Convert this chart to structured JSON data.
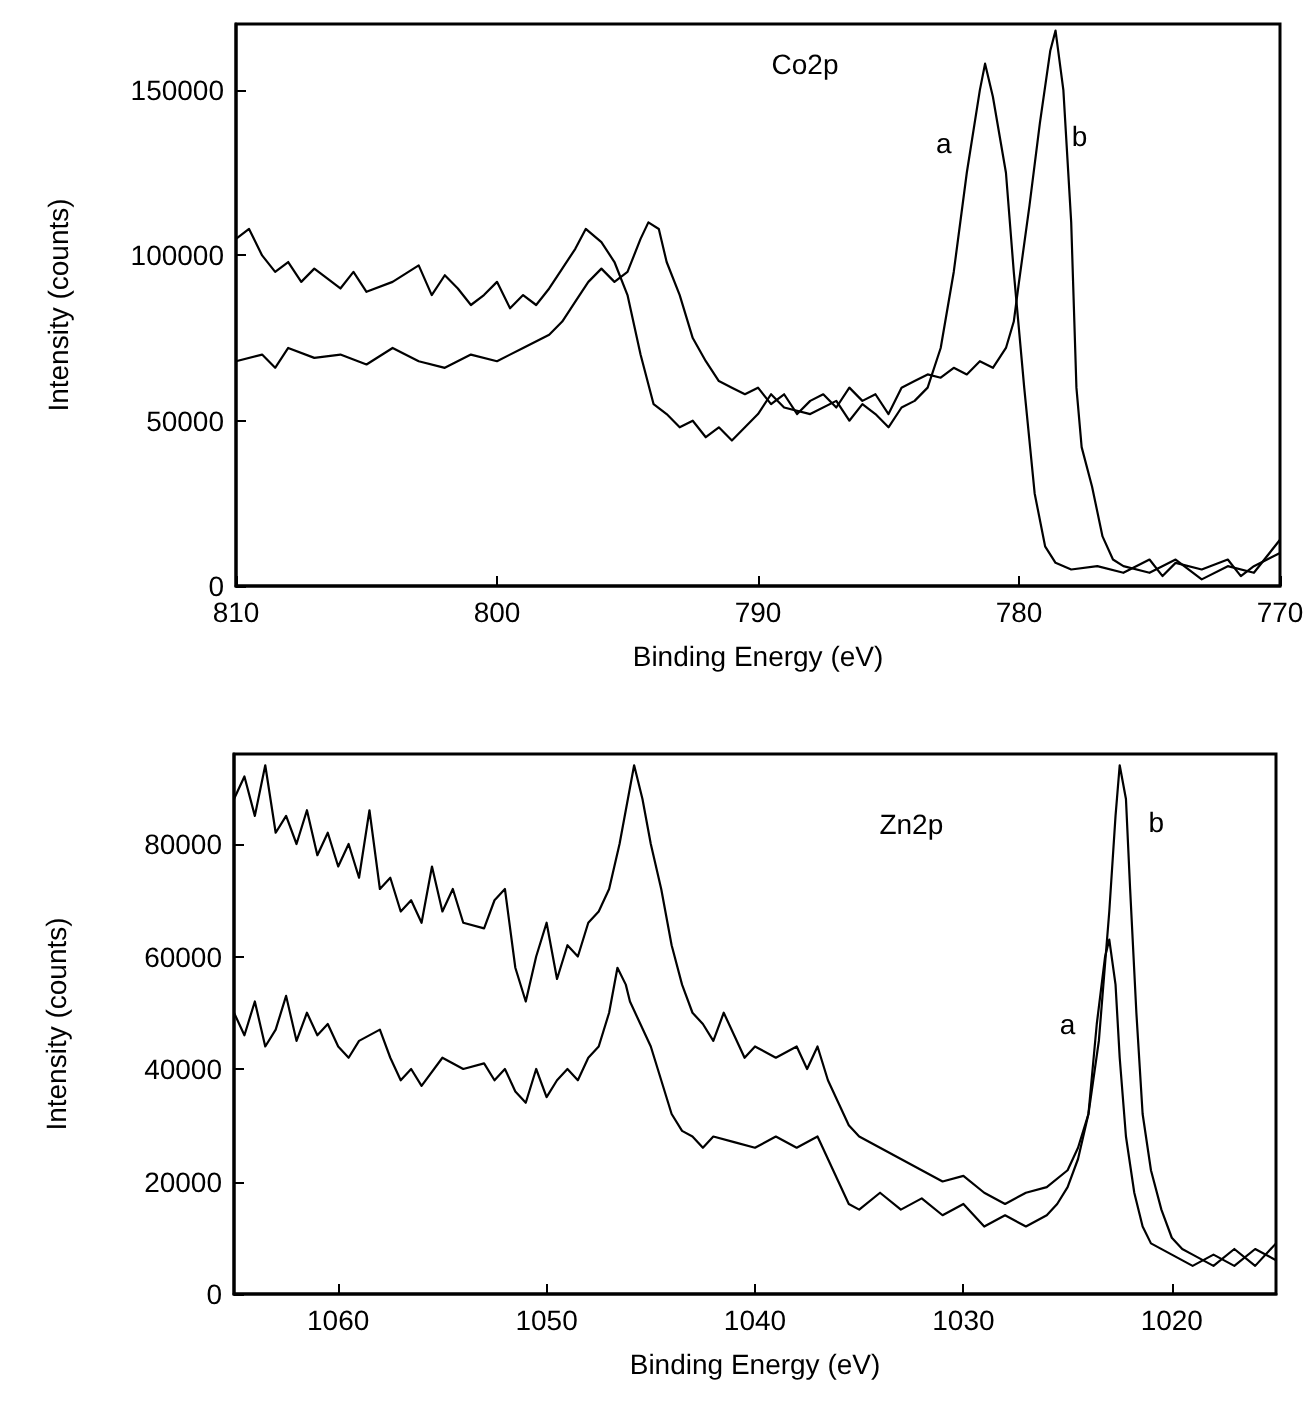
{
  "chart_data": [
    {
      "type": "line",
      "xlabel": "Binding Energy (eV)",
      "ylabel": "Intensity (counts)",
      "xlim": [
        810,
        770
      ],
      "xticks": [
        810,
        800,
        790,
        780,
        770
      ],
      "ylim": [
        0,
        170000
      ],
      "yticks": [
        0,
        50000,
        100000,
        150000
      ],
      "marker": "none",
      "line_style": "solid",
      "annotations": [
        "Co2p",
        "a",
        "b"
      ],
      "series": [
        {
          "color": "#000000",
          "x": [
            810,
            809.5,
            809,
            808.5,
            808,
            807.5,
            807,
            806,
            805.5,
            805,
            804,
            803,
            802.5,
            802,
            801.5,
            801,
            800.5,
            800,
            799.5,
            799,
            798.5,
            798,
            797.5,
            797,
            796.6,
            796,
            795.5,
            795,
            794.5,
            794,
            793.5,
            793,
            792.5,
            792,
            791.5,
            791,
            790.5,
            790,
            789.5,
            789,
            788,
            787,
            786.5,
            786,
            785.5,
            785,
            784.5,
            784,
            783.5,
            783,
            782.5,
            782,
            781.5,
            781.3,
            781,
            780.5,
            780.2,
            779.8,
            779.4,
            779,
            778.6,
            778,
            777,
            776,
            775,
            774.5,
            774,
            773,
            772,
            771.5,
            771,
            770
          ],
          "values": [
            105000,
            108000,
            100000,
            95000,
            98000,
            92000,
            96000,
            90000,
            95000,
            89000,
            92000,
            97000,
            88000,
            94000,
            90000,
            85000,
            88000,
            92000,
            84000,
            88000,
            85000,
            90000,
            96000,
            102000,
            108000,
            104000,
            98000,
            88000,
            70000,
            55000,
            52000,
            48000,
            50000,
            45000,
            48000,
            44000,
            48000,
            52000,
            58000,
            54000,
            52000,
            56000,
            50000,
            55000,
            52000,
            48000,
            54000,
            56000,
            60000,
            72000,
            95000,
            125000,
            150000,
            158000,
            148000,
            125000,
            95000,
            60000,
            28000,
            12000,
            7000,
            5000,
            6000,
            4000,
            8000,
            3000,
            7000,
            5000,
            8000,
            3000,
            6000,
            10000
          ]
        },
        {
          "color": "#000000",
          "x": [
            810,
            809,
            808.5,
            808,
            807,
            806,
            805,
            804,
            803,
            802,
            801,
            800,
            799,
            798,
            797.5,
            797,
            796.5,
            796,
            795.5,
            795,
            794.5,
            794.2,
            793.8,
            793.5,
            793,
            792.5,
            792,
            791.5,
            791,
            790.5,
            790,
            789.5,
            789,
            788.5,
            788,
            787.5,
            787,
            786.5,
            786,
            785.5,
            785,
            784.5,
            784,
            783.5,
            783,
            782.5,
            782,
            781.5,
            781,
            780.5,
            780.2,
            780,
            779.6,
            779.2,
            778.8,
            778.6,
            778.3,
            778,
            777.8,
            777.6,
            777.2,
            776.8,
            776.4,
            776,
            775,
            774,
            773,
            772,
            771,
            770
          ],
          "values": [
            68000,
            70000,
            66000,
            72000,
            69000,
            70000,
            67000,
            72000,
            68000,
            66000,
            70000,
            68000,
            72000,
            76000,
            80000,
            86000,
            92000,
            96000,
            92000,
            95000,
            105000,
            110000,
            108000,
            98000,
            88000,
            75000,
            68000,
            62000,
            60000,
            58000,
            60000,
            55000,
            58000,
            52000,
            56000,
            58000,
            54000,
            60000,
            56000,
            58000,
            52000,
            60000,
            62000,
            64000,
            63000,
            66000,
            64000,
            68000,
            66000,
            72000,
            80000,
            92000,
            115000,
            140000,
            162000,
            168000,
            150000,
            110000,
            60000,
            42000,
            30000,
            15000,
            8000,
            6000,
            4000,
            8000,
            2000,
            6000,
            4000,
            14000
          ]
        }
      ]
    },
    {
      "type": "line",
      "xlabel": "Binding Energy (eV)",
      "ylabel": "Intensity (counts)",
      "xlim": [
        1065,
        1015
      ],
      "xticks": [
        1060,
        1050,
        1040,
        1030,
        1020
      ],
      "ylim": [
        0,
        96000
      ],
      "yticks": [
        0,
        20000,
        40000,
        60000,
        80000
      ],
      "marker": "none",
      "line_style": "solid",
      "annotations": [
        "Zn2p",
        "a",
        "b"
      ],
      "series": [
        {
          "color": "#000000",
          "x": [
            1065,
            1064.5,
            1064,
            1063.5,
            1063,
            1062.5,
            1062,
            1061.5,
            1061,
            1060.5,
            1060,
            1059.5,
            1059,
            1058,
            1057.5,
            1057,
            1056.5,
            1056,
            1055,
            1054,
            1053,
            1052.5,
            1052,
            1051.5,
            1051,
            1050.5,
            1050,
            1049.5,
            1049,
            1048.5,
            1048,
            1047.5,
            1047,
            1046.6,
            1046.2,
            1046,
            1045.5,
            1045,
            1044.5,
            1044,
            1043.5,
            1043,
            1042.5,
            1042,
            1041,
            1040,
            1039,
            1038,
            1037,
            1036.5,
            1036,
            1035.5,
            1035,
            1034,
            1033,
            1032,
            1031,
            1030,
            1029,
            1028,
            1027,
            1026,
            1025.5,
            1025,
            1024.5,
            1024,
            1023.6,
            1023.2,
            1023,
            1022.7,
            1022.5,
            1022.2,
            1021.8,
            1021.4,
            1021,
            1020,
            1019,
            1018,
            1017,
            1016,
            1015
          ],
          "values": [
            50000,
            46000,
            52000,
            44000,
            47000,
            53000,
            45000,
            50000,
            46000,
            48000,
            44000,
            42000,
            45000,
            47000,
            42000,
            38000,
            40000,
            37000,
            42000,
            40000,
            41000,
            38000,
            40000,
            36000,
            34000,
            40000,
            35000,
            38000,
            40000,
            38000,
            42000,
            44000,
            50000,
            58000,
            55000,
            52000,
            48000,
            44000,
            38000,
            32000,
            29000,
            28000,
            26000,
            28000,
            27000,
            26000,
            28000,
            26000,
            28000,
            24000,
            20000,
            16000,
            15000,
            18000,
            15000,
            17000,
            14000,
            16000,
            12000,
            14000,
            12000,
            14000,
            16000,
            19000,
            24000,
            32000,
            48000,
            60000,
            63000,
            55000,
            42000,
            28000,
            18000,
            12000,
            9000,
            7000,
            5000,
            7000,
            5000,
            8000,
            6000
          ]
        },
        {
          "color": "#000000",
          "x": [
            1065,
            1064.5,
            1064,
            1063.5,
            1063,
            1062.5,
            1062,
            1061.5,
            1061,
            1060.5,
            1060,
            1059.5,
            1059,
            1058.5,
            1058,
            1057.5,
            1057,
            1056.5,
            1056,
            1055.5,
            1055,
            1054.5,
            1054,
            1053,
            1052.5,
            1052,
            1051.5,
            1051,
            1050.5,
            1050,
            1049.5,
            1049,
            1048.5,
            1048,
            1047.5,
            1047,
            1046.5,
            1046,
            1045.8,
            1045.4,
            1045,
            1044.5,
            1044,
            1043.5,
            1043,
            1042.5,
            1042,
            1041.5,
            1041,
            1040.5,
            1040,
            1039,
            1038,
            1037.5,
            1037,
            1036.5,
            1036,
            1035.5,
            1035,
            1034,
            1033,
            1032,
            1031,
            1030,
            1029,
            1028,
            1027,
            1026,
            1025,
            1024.5,
            1024,
            1023.5,
            1023,
            1022.7,
            1022.5,
            1022.2,
            1022,
            1021.7,
            1021.4,
            1021,
            1020.5,
            1020,
            1019.5,
            1019,
            1018,
            1017,
            1016,
            1015
          ],
          "values": [
            88000,
            92000,
            85000,
            94000,
            82000,
            85000,
            80000,
            86000,
            78000,
            82000,
            76000,
            80000,
            74000,
            86000,
            72000,
            74000,
            68000,
            70000,
            66000,
            76000,
            68000,
            72000,
            66000,
            65000,
            70000,
            72000,
            58000,
            52000,
            60000,
            66000,
            56000,
            62000,
            60000,
            66000,
            68000,
            72000,
            80000,
            90000,
            94000,
            88000,
            80000,
            72000,
            62000,
            55000,
            50000,
            48000,
            45000,
            50000,
            46000,
            42000,
            44000,
            42000,
            44000,
            40000,
            44000,
            38000,
            34000,
            30000,
            28000,
            26000,
            24000,
            22000,
            20000,
            21000,
            18000,
            16000,
            18000,
            19000,
            22000,
            26000,
            32000,
            45000,
            68000,
            85000,
            94000,
            88000,
            72000,
            50000,
            32000,
            22000,
            15000,
            10000,
            8000,
            7000,
            5000,
            8000,
            5000,
            9000
          ]
        }
      ]
    }
  ]
}
